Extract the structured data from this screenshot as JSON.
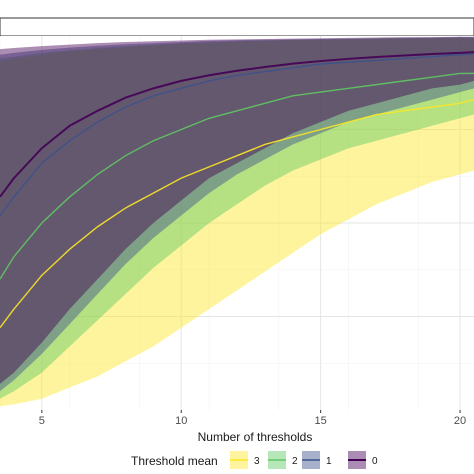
{
  "chart_data": {
    "type": "area",
    "title": "",
    "xlabel": "Number of thresholds",
    "ylabel": "",
    "x_ticks": [
      5,
      10,
      15,
      20
    ],
    "x_tick_labels": [
      "5",
      "10",
      "15",
      "20"
    ],
    "xlim": [
      3.5,
      20.5
    ],
    "ylim": [
      0,
      1
    ],
    "grid": true,
    "legend": {
      "title": "Threshold mean",
      "position": "bottom",
      "entries": [
        "3",
        "2",
        "1",
        "0"
      ]
    },
    "series": [
      {
        "name": "3",
        "color": "#fde725",
        "x": [
          3.5,
          4,
          5,
          6,
          7,
          8,
          9,
          10,
          11,
          12,
          13,
          14,
          15,
          16,
          17,
          18,
          19,
          20,
          20.5
        ],
        "mean": [
          0.22,
          0.27,
          0.36,
          0.43,
          0.49,
          0.54,
          0.58,
          0.62,
          0.65,
          0.68,
          0.71,
          0.73,
          0.75,
          0.77,
          0.79,
          0.8,
          0.81,
          0.82,
          0.83
        ],
        "lower": [
          0.01,
          0.015,
          0.03,
          0.06,
          0.09,
          0.13,
          0.17,
          0.22,
          0.27,
          0.32,
          0.37,
          0.42,
          0.47,
          0.51,
          0.55,
          0.58,
          0.61,
          0.63,
          0.64
        ],
        "upper": [
          0.93,
          0.94,
          0.95,
          0.96,
          0.965,
          0.97,
          0.975,
          0.98,
          0.982,
          0.985,
          0.987,
          0.989,
          0.99,
          0.991,
          0.992,
          0.993,
          0.994,
          0.995,
          0.995
        ]
      },
      {
        "name": "2",
        "color": "#5ec962",
        "x": [
          3.5,
          4,
          5,
          6,
          7,
          8,
          9,
          10,
          11,
          12,
          13,
          14,
          15,
          16,
          17,
          18,
          19,
          20,
          20.5
        ],
        "mean": [
          0.35,
          0.41,
          0.5,
          0.57,
          0.63,
          0.68,
          0.72,
          0.75,
          0.78,
          0.8,
          0.82,
          0.84,
          0.85,
          0.86,
          0.87,
          0.88,
          0.89,
          0.9,
          0.9
        ],
        "lower": [
          0.03,
          0.05,
          0.1,
          0.17,
          0.24,
          0.31,
          0.38,
          0.44,
          0.5,
          0.55,
          0.6,
          0.64,
          0.67,
          0.7,
          0.72,
          0.74,
          0.76,
          0.78,
          0.79
        ],
        "upper": [
          0.94,
          0.945,
          0.955,
          0.962,
          0.968,
          0.973,
          0.977,
          0.981,
          0.984,
          0.986,
          0.988,
          0.99,
          0.991,
          0.992,
          0.993,
          0.994,
          0.995,
          0.996,
          0.996
        ]
      },
      {
        "name": "1",
        "color": "#3b528b",
        "x": [
          3.5,
          4,
          5,
          6,
          7,
          8,
          9,
          10,
          11,
          12,
          13,
          14,
          15,
          16,
          17,
          18,
          19,
          20,
          20.5
        ],
        "mean": [
          0.52,
          0.57,
          0.66,
          0.72,
          0.77,
          0.81,
          0.84,
          0.86,
          0.88,
          0.895,
          0.905,
          0.915,
          0.925,
          0.93,
          0.935,
          0.94,
          0.945,
          0.95,
          0.952
        ],
        "lower": [
          0.05,
          0.08,
          0.15,
          0.23,
          0.31,
          0.39,
          0.46,
          0.52,
          0.58,
          0.63,
          0.67,
          0.71,
          0.74,
          0.77,
          0.79,
          0.81,
          0.83,
          0.85,
          0.86
        ],
        "upper": [
          0.95,
          0.955,
          0.963,
          0.969,
          0.974,
          0.978,
          0.981,
          0.984,
          0.987,
          0.989,
          0.99,
          0.991,
          0.992,
          0.993,
          0.994,
          0.995,
          0.996,
          0.997,
          0.997
        ]
      },
      {
        "name": "0",
        "color": "#440154",
        "x": [
          3.5,
          4,
          5,
          6,
          7,
          8,
          9,
          10,
          11,
          12,
          13,
          14,
          15,
          16,
          17,
          18,
          19,
          20,
          20.5
        ],
        "mean": [
          0.57,
          0.62,
          0.7,
          0.76,
          0.8,
          0.835,
          0.86,
          0.88,
          0.895,
          0.907,
          0.917,
          0.926,
          0.933,
          0.939,
          0.944,
          0.948,
          0.952,
          0.955,
          0.957
        ],
        "lower": [
          0.07,
          0.1,
          0.18,
          0.27,
          0.35,
          0.43,
          0.5,
          0.56,
          0.62,
          0.66,
          0.7,
          0.74,
          0.77,
          0.8,
          0.82,
          0.84,
          0.86,
          0.87,
          0.88
        ],
        "upper": [
          0.965,
          0.968,
          0.973,
          0.977,
          0.981,
          0.984,
          0.986,
          0.988,
          0.99,
          0.991,
          0.992,
          0.993,
          0.994,
          0.995,
          0.996,
          0.997,
          0.997,
          0.998,
          0.998
        ]
      }
    ]
  }
}
